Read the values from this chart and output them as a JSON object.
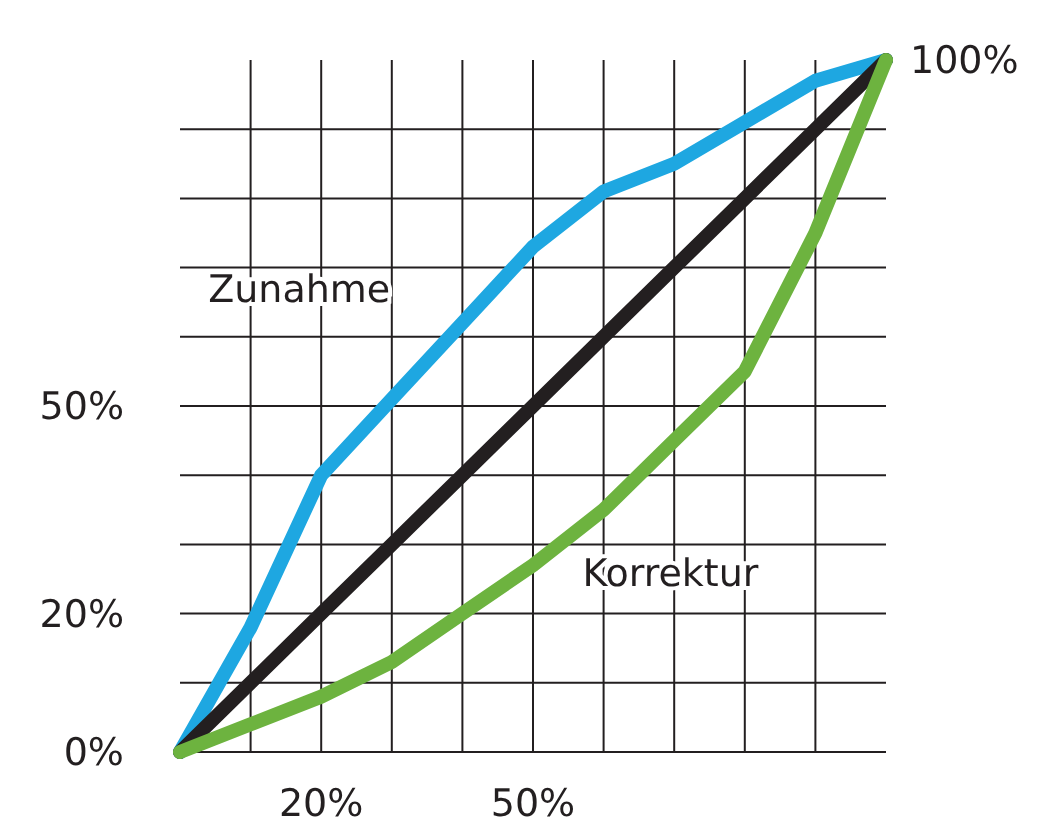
{
  "chart_data": {
    "type": "line",
    "x": [
      0,
      10,
      20,
      30,
      40,
      50,
      60,
      70,
      80,
      90,
      100
    ],
    "series": [
      {
        "name": "Zunahme",
        "color": "#1ea7e1",
        "values": [
          0,
          18,
          40,
          51,
          62,
          73,
          81,
          85,
          91,
          97,
          100
        ]
      },
      {
        "color": "#231f20",
        "values": [
          0,
          10,
          20,
          30,
          40,
          50,
          60,
          70,
          80,
          90,
          100
        ]
      },
      {
        "name": "Korrektur",
        "color": "#6db33f",
        "values": [
          0,
          4,
          8,
          13,
          20,
          27,
          35,
          45,
          55,
          75,
          100
        ]
      }
    ],
    "xlim": [
      0,
      100
    ],
    "ylim": [
      0,
      100
    ],
    "xticks": [
      {
        "value": 10,
        "label": null
      },
      {
        "value": 20,
        "label": "20%"
      },
      {
        "value": 30,
        "label": null
      },
      {
        "value": 40,
        "label": null
      },
      {
        "value": 50,
        "label": "50%"
      },
      {
        "value": 60,
        "label": null
      },
      {
        "value": 70,
        "label": null
      },
      {
        "value": 80,
        "label": null
      },
      {
        "value": 90,
        "label": null
      }
    ],
    "yticks": [
      {
        "value": 0,
        "label": "0%"
      },
      {
        "value": 10,
        "label": null
      },
      {
        "value": 20,
        "label": "20%"
      },
      {
        "value": 30,
        "label": null
      },
      {
        "value": 40,
        "label": null
      },
      {
        "value": 50,
        "label": "50%"
      },
      {
        "value": 60,
        "label": null
      },
      {
        "value": 70,
        "label": null
      },
      {
        "value": 80,
        "label": null
      },
      {
        "value": 90,
        "label": null
      }
    ],
    "annotations": [
      {
        "text": "100%",
        "x": 100,
        "y": 100
      }
    ],
    "grid": true,
    "marker": "none",
    "line_style": "solid"
  }
}
